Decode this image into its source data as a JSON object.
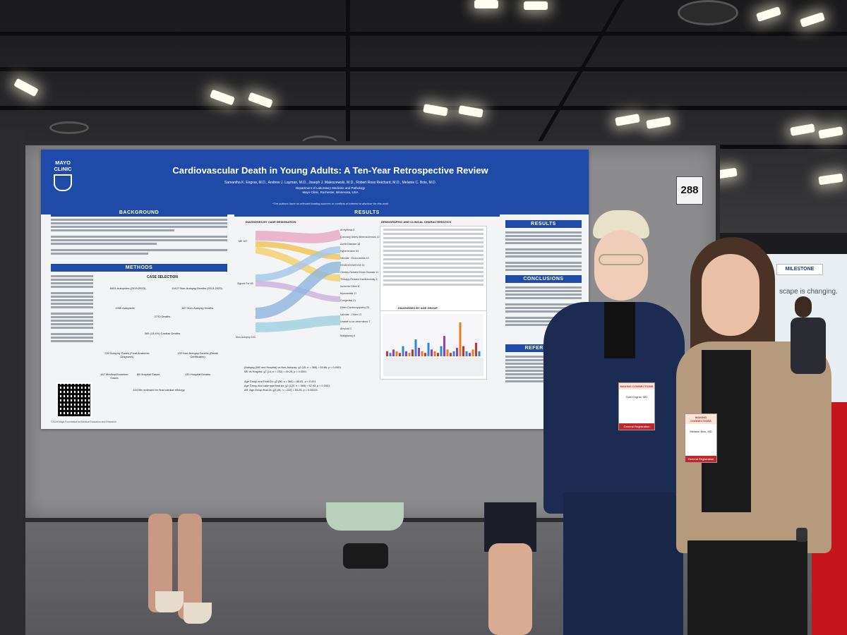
{
  "scene": {
    "description_colors": {
      "poster_blue": "#1f4aa8",
      "carpet_red": "#c4161c"
    }
  },
  "booth": {
    "number": "288"
  },
  "poster": {
    "logo": "MAYO CLINIC",
    "title": "Cardiovascular Death in Young Adults: A Ten-Year Retrospective Review",
    "authors": "Samantha K. Engrav, M.D., Andrew J. Layman, M.D., Joseph J. Maleszewski, M.D., Robert Ross Reichard, M.D., Melanie C. Bois, M.D.",
    "dept_1": "Department of Laboratory Medicine and Pathology",
    "dept_2": "Mayo Clinic, Rochester, Minnesota, USA",
    "funding": "*The authors have no relevant funding sources or conflicts of interest to disclose for this work",
    "sections": {
      "background": "BACKGROUND",
      "methods": "METHODS",
      "results_center": "RESULTS",
      "results_right": "RESULTS",
      "conclusions": "CONCLUSIONS",
      "references": "REFERENCES"
    },
    "sankey_title": "DIAGNOSES BY CASE DESIGNATION",
    "demo_title": "DEMOGRAPHIC AND CLINICAL CHARACTERISTICS",
    "age_title": "DIAGNOSES BY AGE GROUP",
    "case_selection": "CASE SELECTION",
    "flow": {
      "autopsies": "8401 Autopsies (2013-2023)",
      "non_autopsy": "11427 Non-Autopsy Deaths (2013-2023)",
      "a1906": "1906 Autopsies",
      "n827": "827 Non-Autopsy Deaths",
      "d2733": "2733 Deaths",
      "cardiac": "365 (13.4%) Cardiac Deaths",
      "autopsy_cases": "232 Autopsy Cases (Final Anatomic Diagnosis)",
      "non_autopsy_cases": "133 Non-Autopsy Deaths (Death Certificates)",
      "me": "167 Medical Examiner Cases",
      "hospital": "65 Hospital Cases",
      "hosp_deaths": "133 Hospital Deaths",
      "reviewed": "104 life reviewed for final cardiac etiology"
    },
    "diagnoses": [
      "Arrhythmia 8",
      "Coronary Artery Atherosclerosis 127",
      "Aortic Disease 18",
      "Hypertensive 53",
      "Valvular - Endocarditis 10",
      "HCM/HOCM/DCM 21",
      "Obesity-Related Heart Disease 11",
      "Therapy-Related Cardiotoxicity 3",
      "Ischemic Other 8",
      "Myocarditis 17",
      "Congenital 21",
      "Other Cardiomyopathy 25",
      "Valvular - Other 13",
      "Unable to be determined 7",
      "Amyloid 3",
      "Malignancy 6"
    ],
    "sankey_left": [
      "ME 167",
      "Signed For 65",
      "Non-Autopsy 133"
    ],
    "stats": [
      "(Autopsy (ME and Hospital) vs Non-Autopsy: χ2 (15, n = 365) = 53.86, p < 0.0001",
      "ME vs Hospital: χ2 (14, n = 232) = 49.25, p < 0.0001",
      "Age Group and Final Dx: χ2 (30, n = 365) = 86.81, p < 0.001",
      "Age Group and case type final dx: χ2 (120, n = 365) = 62.43, p = 0.0001",
      "AR: Age Group final dx: χ2 (28, n = 232) = 83.25, p = 0.00023"
    ],
    "footer": "©2024 Mayo Foundation for Medical Education and Research"
  },
  "badges": [
    {
      "event": "MAKING CONNECTIONS",
      "name": "Sam Engrav, MD",
      "role": "General Registration"
    },
    {
      "event": "MAKING CONNECTIONS",
      "name": "Melanie Bois, MD",
      "role": "General Registration"
    }
  ],
  "background_booth": {
    "sign": "MILESTONE",
    "tagline": "scape is changing."
  }
}
